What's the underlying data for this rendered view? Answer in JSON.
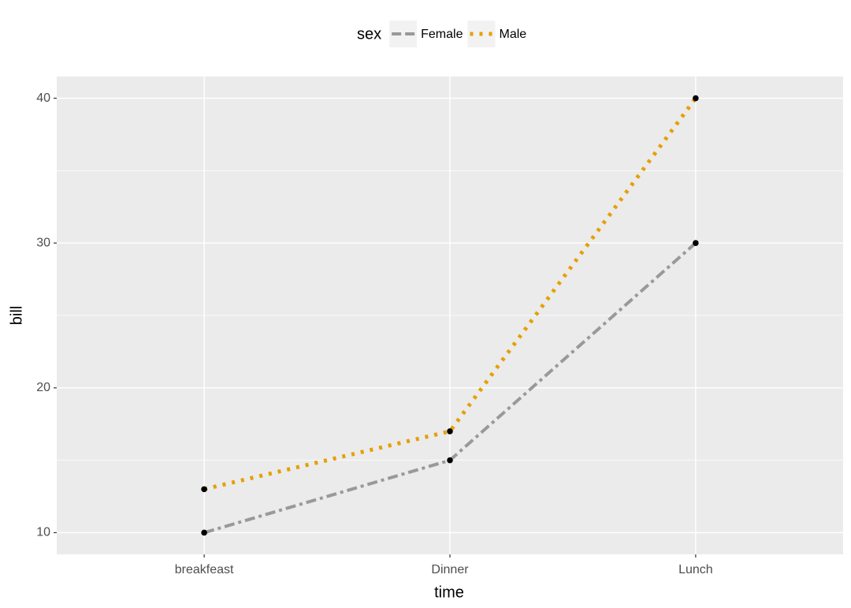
{
  "chart_data": {
    "type": "line",
    "x_label": "time",
    "y_label": "bill",
    "categories": [
      "breakfeast",
      "Dinner",
      "Lunch"
    ],
    "series": [
      {
        "name": "Female",
        "color": "#999999",
        "linetype": "dotdash",
        "values": [
          10,
          15,
          30
        ]
      },
      {
        "name": "Male",
        "color": "#E69F00",
        "linetype": "dotted",
        "values": [
          13,
          17,
          40
        ]
      }
    ],
    "ylim": [
      8.5,
      41.5
    ],
    "yticks": [
      10,
      20,
      30,
      40
    ],
    "grid": true,
    "points": true,
    "point_color": "#000000",
    "legend_title": "sex",
    "legend_position": "top"
  }
}
